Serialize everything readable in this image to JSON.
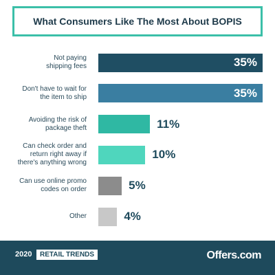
{
  "chart_data": {
    "type": "bar",
    "orientation": "horizontal",
    "title": "What Consumers Like The Most About BOPIS",
    "categories": [
      "Not paying\nshipping fees",
      "Don't have to wait for\nthe item to ship",
      "Avoiding the risk of\npackage theft",
      "Can check order and\nreturn right away if\nthere's anything wrong",
      "Can use online promo\ncodes on order",
      "Other"
    ],
    "values": [
      35,
      35,
      11,
      10,
      5,
      4
    ],
    "value_labels": [
      "35%",
      "35%",
      "11%",
      "10%",
      "5%",
      "4%"
    ],
    "colors": [
      "#1f4e63",
      "#3a7ea1",
      "#2fb8a3",
      "#4fd6bd",
      "#8c8c8c",
      "#c8c8c8"
    ]
  },
  "footer": {
    "year": "2020",
    "tag": "RETAIL TRENDS",
    "brand": "Offers.com"
  }
}
